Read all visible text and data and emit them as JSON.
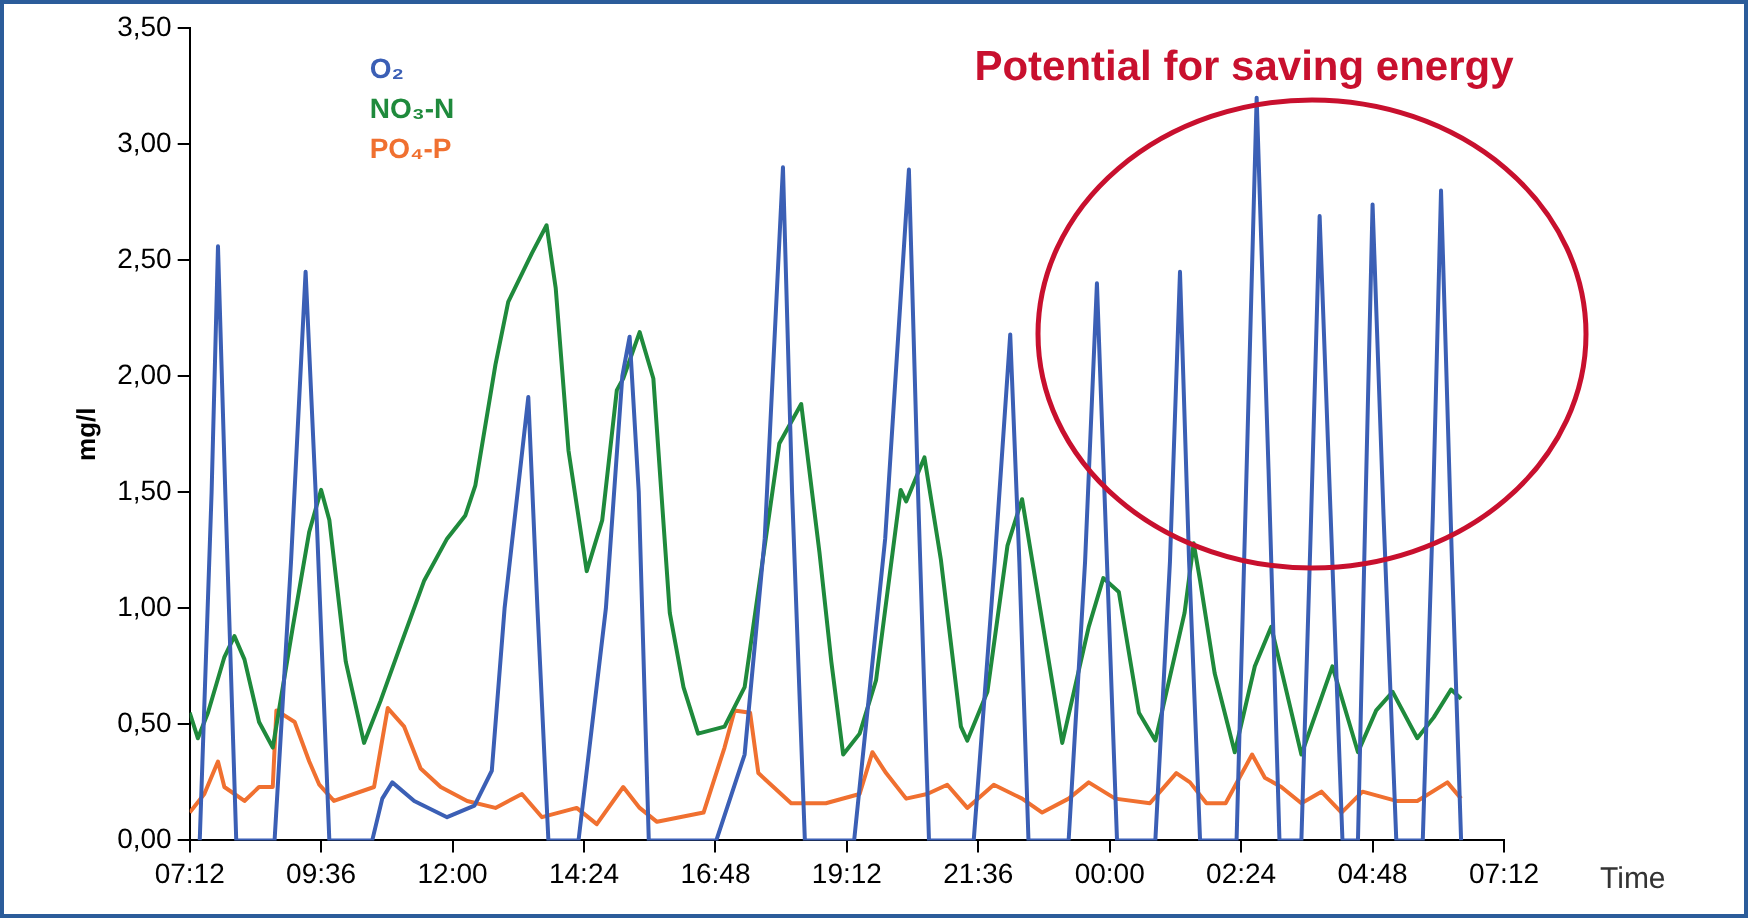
{
  "chart_data": {
    "type": "line",
    "xlabel": "Time",
    "ylabel": "mg/l",
    "legend": "top left",
    "marker": "none",
    "grid": false,
    "annotations": [
      "Potential for saving energy"
    ],
    "xlim": [
      "--01-01T07:12",
      "--01-02T07:12"
    ],
    "xticks": [
      {
        "value": "--01-01T07:12",
        "label": "07:12"
      },
      {
        "value": "--01-01T09:36",
        "label": "09:36"
      },
      {
        "value": "--01-01T12:00",
        "label": "12:00"
      },
      {
        "value": "--01-01T14:24",
        "label": "14:24"
      },
      {
        "value": "--01-01T16:48",
        "label": "16:48"
      },
      {
        "value": "--01-01T19:12",
        "label": "19:12"
      },
      {
        "value": "--01-01T21:36",
        "label": "21:36"
      },
      {
        "value": "--01-02T00:00",
        "label": "00:00"
      },
      {
        "value": "--01-02T02:24",
        "label": "02:24"
      },
      {
        "value": "--01-02T04:48",
        "label": "04:48"
      },
      {
        "value": "--01-02T07:12",
        "label": "07:12"
      }
    ],
    "ylim": [
      0,
      3.5
    ],
    "yticks": [
      {
        "value": 0,
        "label": "0,00"
      },
      {
        "value": 0.5,
        "label": "0,50"
      },
      {
        "value": 1,
        "label": "1,00"
      },
      {
        "value": 1.5,
        "label": "1,50"
      },
      {
        "value": 2,
        "label": "2,00"
      },
      {
        "value": 2.5,
        "label": "2,50"
      },
      {
        "value": 3,
        "label": "3,00"
      },
      {
        "value": 3.5,
        "label": "3,50"
      }
    ],
    "series": [
      {
        "name": "O₂",
        "color": "#3b5fb5",
        "x": [
          "--01-01T07:23",
          "--01-01T07:36",
          "--01-01T07:43",
          "--01-01T07:51",
          "--01-01T08:03",
          "--01-01T08:45",
          "--01-01T09:03",
          "--01-01T09:19",
          "--01-01T09:30",
          "--01-01T09:45",
          "--01-01T10:32",
          "--01-01T10:43",
          "--01-01T10:54",
          "--01-01T11:18",
          "--01-01T11:54",
          "--01-01T12:24",
          "--01-01T12:43",
          "--01-01T12:57",
          "--01-01T13:23",
          "--01-01T13:33",
          "--01-01T13:45",
          "--01-01T14:18",
          "--01-01T14:48",
          "--01-01T15:06",
          "--01-01T15:14",
          "--01-01T15:24",
          "--01-01T15:35",
          "--01-01T16:49",
          "--01-01T17:20",
          "--01-01T17:42",
          "--01-01T18:02",
          "--01-01T18:12",
          "--01-01T18:26",
          "--01-01T19:20",
          "--01-01T19:54",
          "--01-01T20:20",
          "--01-01T20:30",
          "--01-01T20:42",
          "--01-01T21:31",
          "--01-01T21:54",
          "--01-01T22:11",
          "--01-01T22:21",
          "--01-01T22:31",
          "--01-01T23:15",
          "--01-01T23:33",
          "--01-01T23:46",
          "--01-01T23:57",
          "--01-02T00:08",
          "--01-02T00:50",
          "--01-02T01:06",
          "--01-02T01:17",
          "--01-02T01:27",
          "--01-02T01:39",
          "--01-02T02:19",
          "--01-02T02:30",
          "--01-02T02:41",
          "--01-02T02:54",
          "--01-02T03:06",
          "--01-02T03:30",
          "--01-02T03:40",
          "--01-02T03:50",
          "--01-02T04:03",
          "--01-02T04:15",
          "--01-02T04:32",
          "--01-02T04:40",
          "--01-02T04:48",
          "--01-02T05:00",
          "--01-02T05:14",
          "--01-02T05:43",
          "--01-02T05:54",
          "--01-02T06:03",
          "--01-02T06:15",
          "--01-02T06:25"
        ],
        "values": [
          0,
          1.5,
          2.56,
          1.5,
          0,
          0,
          1.2,
          2.45,
          1.5,
          0,
          0,
          0.18,
          0.25,
          0.17,
          0.1,
          0.15,
          0.3,
          1.0,
          1.91,
          1.0,
          0,
          0,
          1.0,
          2.0,
          2.17,
          1.5,
          0,
          0,
          0.37,
          1.3,
          2.9,
          1.5,
          0,
          0,
          1.3,
          2.89,
          1.5,
          0,
          0,
          1.2,
          2.18,
          1.2,
          0,
          0,
          1.2,
          2.4,
          1.2,
          0,
          0,
          1.2,
          2.45,
          1.2,
          0,
          0,
          1.6,
          3.2,
          1.6,
          0,
          0,
          1.3,
          2.69,
          1.3,
          0,
          0,
          1.4,
          2.74,
          1.4,
          0,
          0,
          1.4,
          2.8,
          1.2,
          0
        ]
      },
      {
        "name": "NO₃-N",
        "color": "#1f8a3c",
        "x": [
          "--01-01T07:12",
          "--01-01T07:21",
          "--01-01T07:32",
          "--01-01T07:50",
          "--01-01T08:01",
          "--01-01T08:12",
          "--01-01T08:28",
          "--01-01T08:43",
          "--01-01T09:05",
          "--01-01T09:23",
          "--01-01T09:36",
          "--01-01T09:45",
          "--01-01T10:03",
          "--01-01T10:23",
          "--01-01T10:41",
          "--01-01T11:03",
          "--01-01T11:29",
          "--01-01T11:54",
          "--01-01T12:14",
          "--01-01T12:25",
          "--01-01T12:47",
          "--01-01T13:01",
          "--01-01T13:27",
          "--01-01T13:43",
          "--01-01T13:53",
          "--01-01T14:07",
          "--01-01T14:27",
          "--01-01T14:44",
          "--01-01T15:00",
          "--01-01T15:07",
          "--01-01T15:25",
          "--01-01T15:40",
          "--01-01T15:58",
          "--01-01T16:13",
          "--01-01T16:29",
          "--01-01T16:58",
          "--01-01T17:20",
          "--01-01T17:58",
          "--01-01T18:22",
          "--01-01T18:42",
          "--01-01T18:55",
          "--01-01T19:08",
          "--01-01T19:26",
          "--01-01T19:44",
          "--01-01T20:11",
          "--01-01T20:17",
          "--01-01T20:37",
          "--01-01T20:55",
          "--01-01T21:17",
          "--01-01T21:24",
          "--01-01T21:46",
          "--01-01T22:08",
          "--01-01T22:24",
          "--01-01T22:37",
          "--01-01T23:08",
          "--01-01T23:37",
          "--01-01T23:53",
          "--01-02T00:10",
          "--01-02T00:32",
          "--01-02T00:50",
          "--01-02T01:22",
          "--01-02T01:32",
          "--01-02T01:39",
          "--01-02T01:55",
          "--01-02T02:17",
          "--01-02T02:39",
          "--01-02T02:57",
          "--01-02T03:30",
          "--01-02T04:04",
          "--01-02T04:32",
          "--01-02T04:52",
          "--01-02T05:10",
          "--01-02T05:37",
          "--01-02T05:55",
          "--01-02T06:14",
          "--01-02T06:25"
        ],
        "values": [
          0.55,
          0.44,
          0.55,
          0.79,
          0.88,
          0.78,
          0.51,
          0.4,
          0.92,
          1.33,
          1.51,
          1.38,
          0.77,
          0.42,
          0.6,
          0.84,
          1.12,
          1.3,
          1.4,
          1.53,
          2.05,
          2.32,
          2.53,
          2.65,
          2.38,
          1.68,
          1.16,
          1.38,
          1.94,
          1.99,
          2.19,
          1.99,
          0.98,
          0.66,
          0.46,
          0.49,
          0.66,
          1.71,
          1.88,
          1.24,
          0.77,
          0.37,
          0.46,
          0.69,
          1.51,
          1.46,
          1.65,
          1.21,
          0.49,
          0.43,
          0.64,
          1.27,
          1.47,
          1.16,
          0.42,
          0.92,
          1.13,
          1.07,
          0.55,
          0.43,
          0.98,
          1.28,
          1.12,
          0.72,
          0.38,
          0.75,
          0.92,
          0.37,
          0.75,
          0.38,
          0.56,
          0.64,
          0.44,
          0.53,
          0.65,
          0.61
        ]
      },
      {
        "name": "PO₄-P",
        "color": "#f07030",
        "x": [
          "--01-01T07:12",
          "--01-01T07:28",
          "--01-01T07:43",
          "--01-01T07:50",
          "--01-01T08:12",
          "--01-01T08:28",
          "--01-01T08:43",
          "--01-01T08:47",
          "--01-01T09:07",
          "--01-01T09:23",
          "--01-01T09:34",
          "--01-01T09:50",
          "--01-01T10:34",
          "--01-01T10:49",
          "--01-01T11:07",
          "--01-01T11:25",
          "--01-01T11:47",
          "--01-01T12:16",
          "--01-01T12:47",
          "--01-01T13:16",
          "--01-01T13:38",
          "--01-01T14:16",
          "--01-01T14:38",
          "--01-01T15:07",
          "--01-01T15:25",
          "--01-01T15:44",
          "--01-01T16:35",
          "--01-01T16:58",
          "--01-01T17:09",
          "--01-01T17:26",
          "--01-01T17:35",
          "--01-01T18:11",
          "--01-01T18:49",
          "--01-01T19:26",
          "--01-01T19:40",
          "--01-01T19:55",
          "--01-01T20:17",
          "--01-01T20:40",
          "--01-01T21:02",
          "--01-01T21:24",
          "--01-01T21:53",
          "--01-01T22:24",
          "--01-01T22:46",
          "--01-01T23:15",
          "--01-01T23:37",
          "--01-02T00:06",
          "--01-02T00:44",
          "--01-02T01:13",
          "--01-02T01:28",
          "--01-02T01:46",
          "--01-02T02:07",
          "--01-02T02:36",
          "--01-02T02:50",
          "--01-02T03:08",
          "--01-02T03:30",
          "--01-02T03:52",
          "--01-02T04:14",
          "--01-02T04:37",
          "--01-02T05:14",
          "--01-02T05:37",
          "--01-02T06:10",
          "--01-02T06:25"
        ],
        "values": [
          0.12,
          0.2,
          0.34,
          0.23,
          0.17,
          0.23,
          0.23,
          0.56,
          0.51,
          0.34,
          0.24,
          0.17,
          0.23,
          0.57,
          0.49,
          0.31,
          0.23,
          0.17,
          0.14,
          0.2,
          0.1,
          0.14,
          0.07,
          0.23,
          0.14,
          0.08,
          0.12,
          0.4,
          0.56,
          0.55,
          0.29,
          0.16,
          0.16,
          0.2,
          0.38,
          0.29,
          0.18,
          0.2,
          0.24,
          0.14,
          0.24,
          0.18,
          0.12,
          0.18,
          0.25,
          0.18,
          0.16,
          0.29,
          0.25,
          0.16,
          0.16,
          0.37,
          0.27,
          0.23,
          0.16,
          0.21,
          0.12,
          0.21,
          0.17,
          0.17,
          0.25,
          0.18
        ]
      }
    ]
  }
}
